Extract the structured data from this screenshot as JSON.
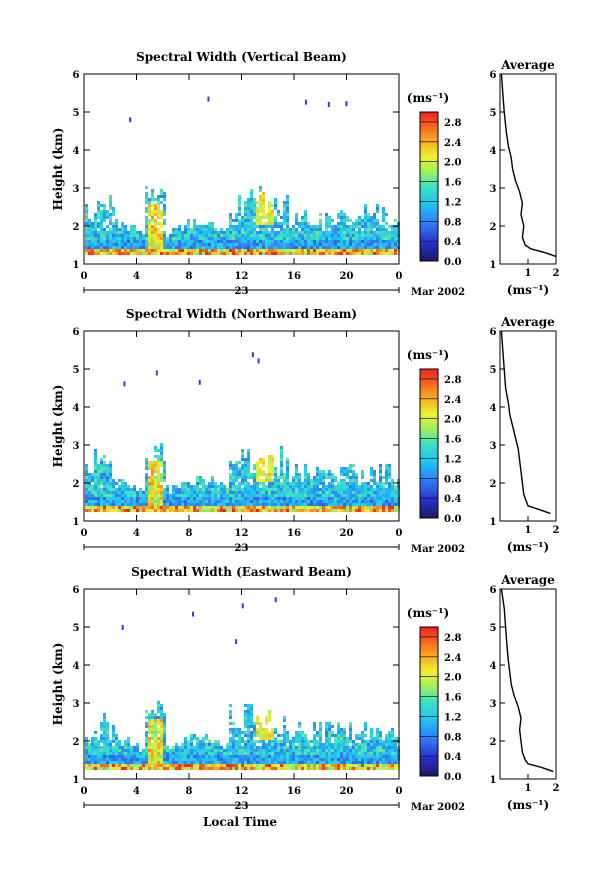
{
  "figure": {
    "xlabel": "Local Time",
    "day_label": "23",
    "month_label": "Mar 2002",
    "colorbar_unit": "(ms⁻¹)",
    "avg_xlabel": "(ms⁻¹)",
    "avg_title": "Average"
  },
  "chart_data": [
    {
      "type": "heatmap",
      "title": "Spectral Width (Vertical Beam)",
      "ylabel": "Height (km)",
      "xlim": [
        0,
        24
      ],
      "ylim": [
        1,
        6
      ],
      "xticks": [
        "0",
        "4",
        "8",
        "12",
        "16",
        "20",
        "0"
      ],
      "yticks": [
        "1",
        "2",
        "3",
        "4",
        "5",
        "6"
      ],
      "colorbar_range": [
        0,
        3.0
      ],
      "colorbar_ticks": [
        "0.0",
        "0.4",
        "0.8",
        "1.2",
        "1.6",
        "2.0",
        "2.4",
        "2.8"
      ],
      "average_profile": {
        "xlim": [
          0,
          2
        ],
        "xticks": [
          "1",
          "2"
        ],
        "height_km": [
          1.2,
          1.3,
          1.4,
          1.5,
          1.7,
          2.0,
          2.3,
          2.6,
          2.9,
          3.2,
          3.5,
          3.8,
          4.1,
          4.5,
          5.0,
          5.5,
          6.0
        ],
        "width_ms": [
          2.0,
          1.6,
          1.1,
          0.9,
          0.8,
          0.85,
          0.75,
          0.8,
          0.7,
          0.55,
          0.45,
          0.4,
          0.3,
          0.22,
          0.15,
          0.1,
          0.05
        ]
      }
    },
    {
      "type": "heatmap",
      "title": "Spectral Width (Northward Beam)",
      "ylabel": "Height (km)",
      "xlim": [
        0,
        24
      ],
      "ylim": [
        1,
        6
      ],
      "xticks": [
        "0",
        "4",
        "8",
        "12",
        "16",
        "20",
        "0"
      ],
      "yticks": [
        "1",
        "2",
        "3",
        "4",
        "5",
        "6"
      ],
      "colorbar_range": [
        0,
        3.0
      ],
      "colorbar_ticks": [
        "0.0",
        "0.4",
        "0.8",
        "1.2",
        "1.6",
        "2.0",
        "2.4",
        "2.8"
      ],
      "average_profile": {
        "xlim": [
          0,
          2
        ],
        "xticks": [
          "1",
          "2"
        ],
        "height_km": [
          1.2,
          1.3,
          1.4,
          1.5,
          1.7,
          2.0,
          2.3,
          2.6,
          2.9,
          3.2,
          3.5,
          3.8,
          4.1,
          4.5,
          5.0,
          5.5,
          6.0
        ],
        "width_ms": [
          1.8,
          1.4,
          1.0,
          0.95,
          0.85,
          0.8,
          0.75,
          0.7,
          0.65,
          0.55,
          0.45,
          0.35,
          0.3,
          0.2,
          0.15,
          0.1,
          0.05
        ]
      }
    },
    {
      "type": "heatmap",
      "title": "Spectral Width (Eastward Beam)",
      "ylabel": "Height (km)",
      "xlim": [
        0,
        24
      ],
      "ylim": [
        1,
        6
      ],
      "xticks": [
        "0",
        "4",
        "8",
        "12",
        "16",
        "20",
        "0"
      ],
      "yticks": [
        "1",
        "2",
        "3",
        "4",
        "5",
        "6"
      ],
      "colorbar_range": [
        0,
        3.0
      ],
      "colorbar_ticks": [
        "0.0",
        "0.4",
        "0.8",
        "1.2",
        "1.6",
        "2.0",
        "2.4",
        "2.8"
      ],
      "average_profile": {
        "xlim": [
          0,
          2
        ],
        "xticks": [
          "1",
          "2"
        ],
        "height_km": [
          1.2,
          1.3,
          1.4,
          1.5,
          1.7,
          2.0,
          2.3,
          2.6,
          2.9,
          3.2,
          3.5,
          3.8,
          4.1,
          4.5,
          5.0,
          5.5,
          6.0
        ],
        "width_ms": [
          1.9,
          1.5,
          1.0,
          0.9,
          0.8,
          0.75,
          0.7,
          0.75,
          0.65,
          0.5,
          0.4,
          0.35,
          0.3,
          0.25,
          0.2,
          0.15,
          0.05
        ]
      }
    }
  ]
}
